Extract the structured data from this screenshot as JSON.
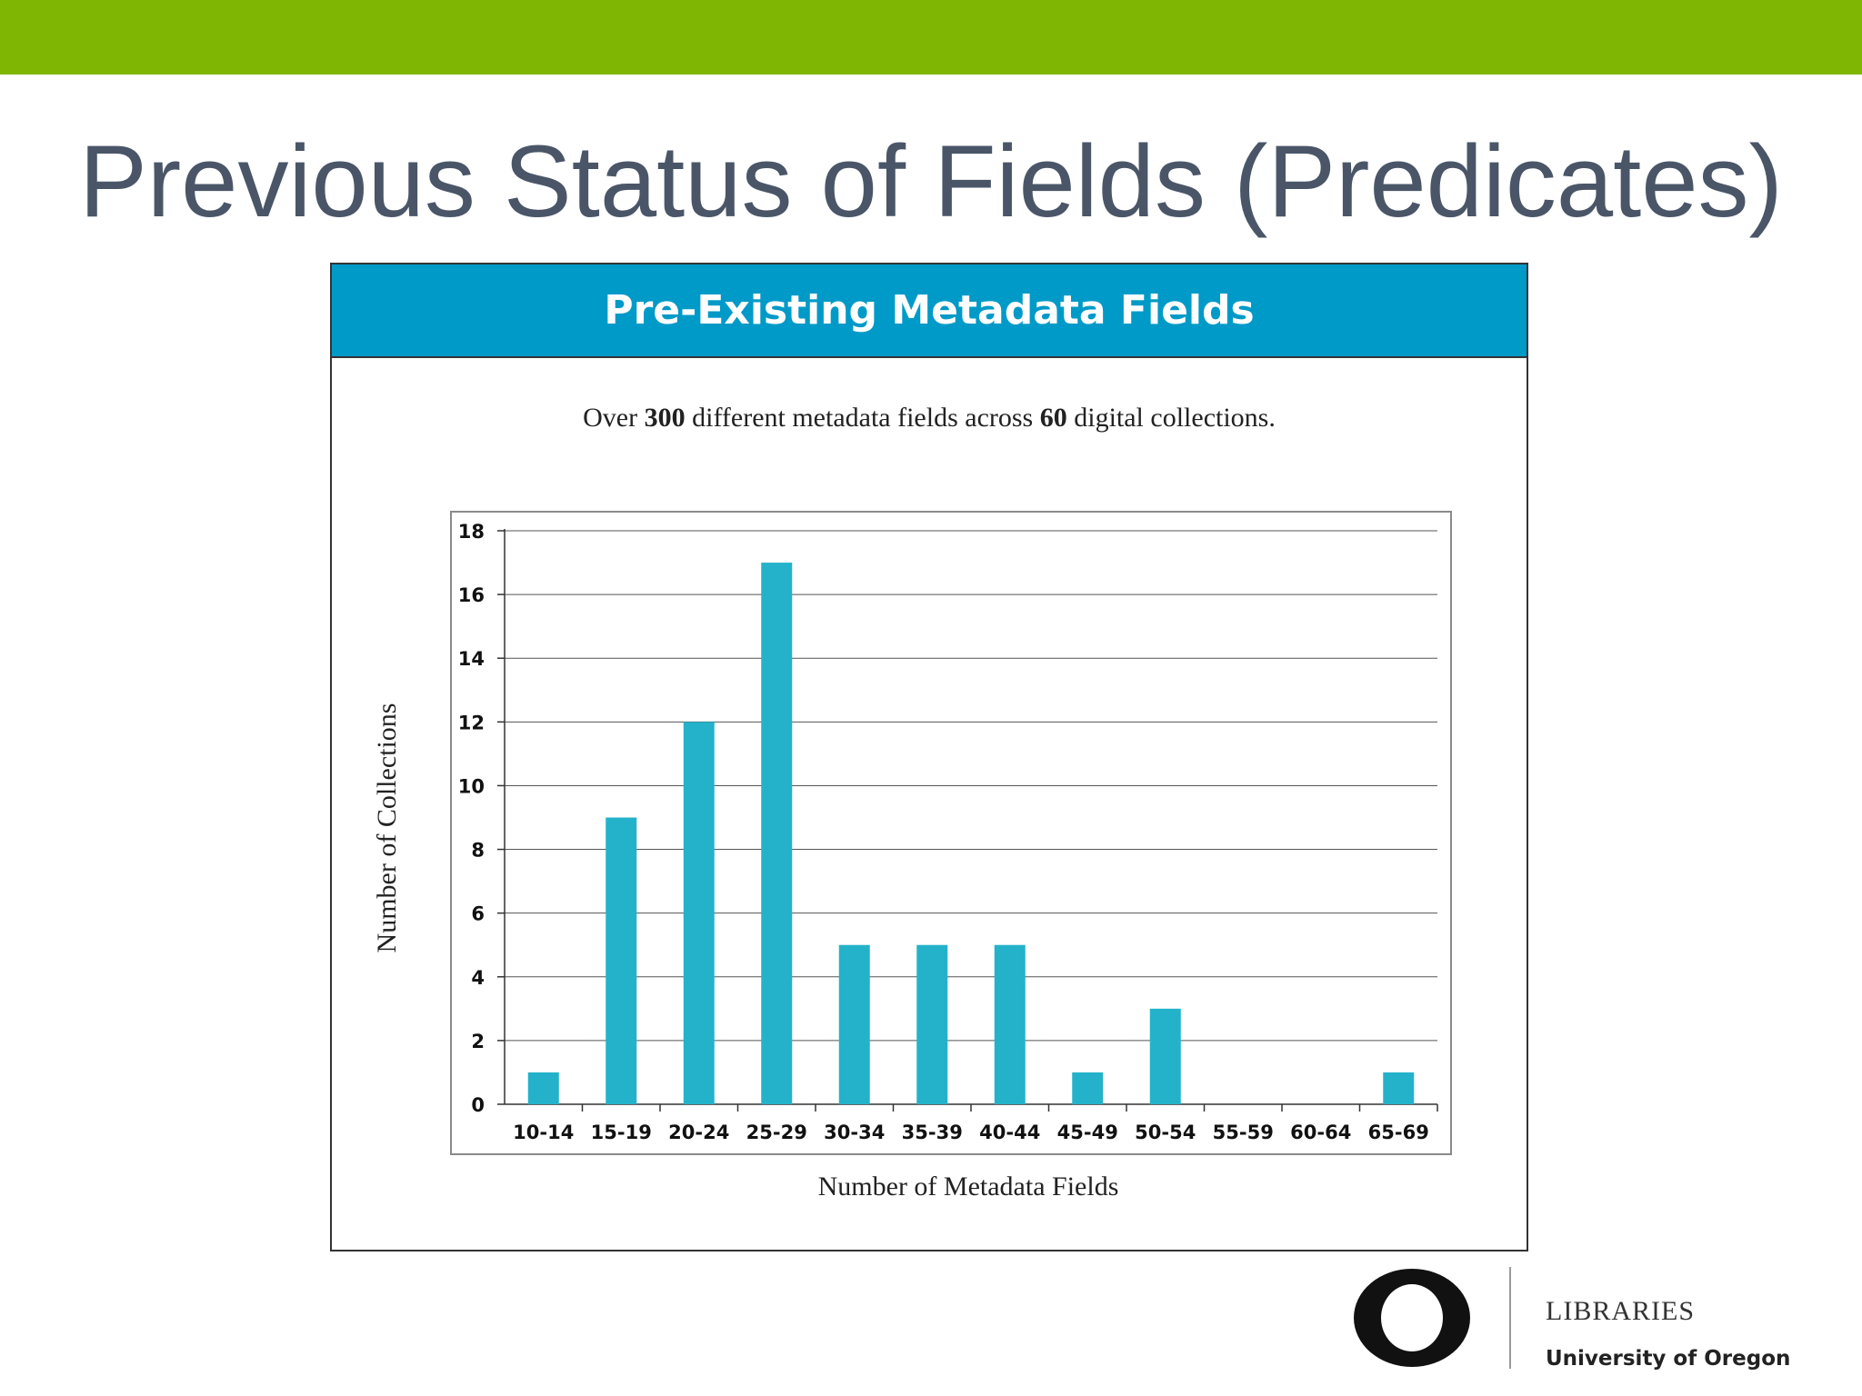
{
  "slide": {
    "title": "Previous Status of Fields (Predicates)",
    "accent_color": "#7fb604",
    "title_color": "#4a5668"
  },
  "panel": {
    "header": "Pre-Existing Metadata Fields",
    "header_color": "#009ac8",
    "subtitle_parts": [
      "Over ",
      "300",
      " different metadata fields across ",
      "60",
      " digital collections."
    ]
  },
  "chart_data": {
    "type": "bar",
    "title": "",
    "xlabel": "Number of Metadata Fields",
    "ylabel": "Number of Collections",
    "categories": [
      "10-14",
      "15-19",
      "20-24",
      "25-29",
      "30-34",
      "35-39",
      "40-44",
      "45-49",
      "50-54",
      "55-59",
      "60-64",
      "65-69"
    ],
    "values": [
      1,
      9,
      12,
      17,
      5,
      5,
      5,
      1,
      3,
      0,
      0,
      1
    ],
    "ylim": [
      0,
      18
    ],
    "yticks": [
      0,
      2,
      4,
      6,
      8,
      10,
      12,
      14,
      16,
      18
    ],
    "grid": true,
    "legend": "none",
    "bar_color": "#24b2ca"
  },
  "footer": {
    "logo_letter": "O",
    "libraries": "LIBRARIES",
    "university": "University of Oregon"
  }
}
